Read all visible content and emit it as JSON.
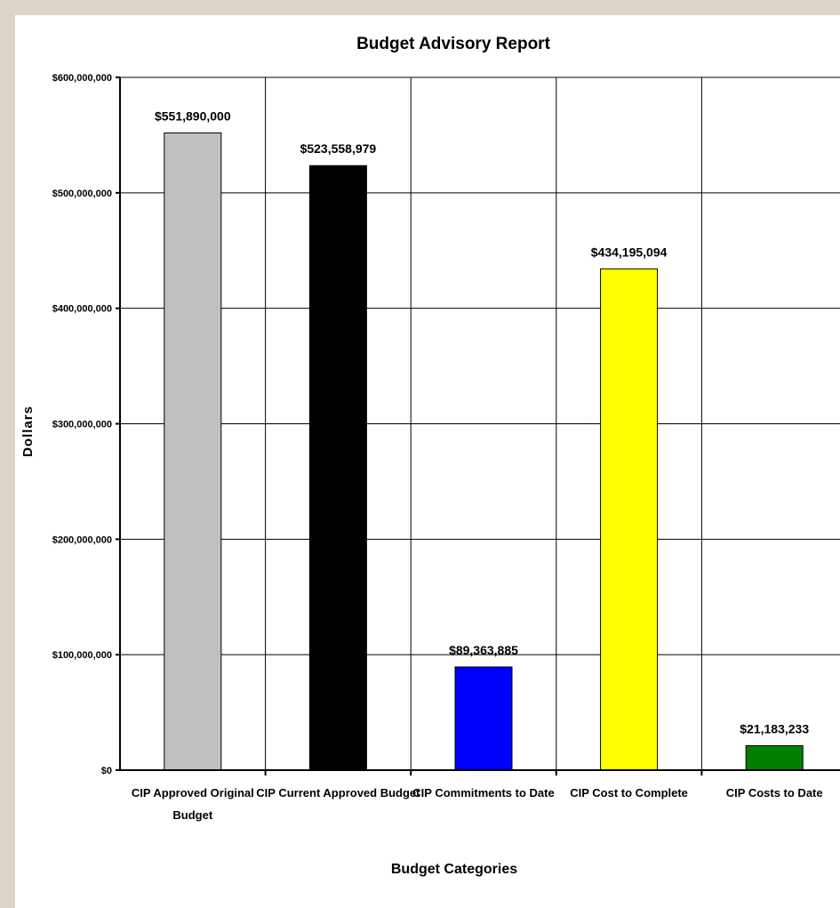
{
  "chart_data": {
    "type": "bar",
    "title": "Budget Advisory Report",
    "xlabel": "Budget Categories",
    "ylabel": "Dollars",
    "ylim": [
      0,
      600000000
    ],
    "yticks": [
      0,
      100000000,
      200000000,
      300000000,
      400000000,
      500000000,
      600000000
    ],
    "ytick_labels": [
      "$0",
      "$100,000,000",
      "$200,000,000",
      "$300,000,000",
      "$400,000,000",
      "$500,000,000",
      "$600,000,000"
    ],
    "grid": true,
    "legend": "none",
    "categories": [
      [
        "CIP Approved Original",
        "Budget"
      ],
      [
        "CIP Current Approved Budget"
      ],
      [
        "CIP Commitments to Date"
      ],
      [
        "CIP Cost to Complete"
      ],
      [
        "CIP Costs to Date"
      ]
    ],
    "values": [
      551890000,
      523558979,
      89363885,
      434195094,
      21183233
    ],
    "data_labels": [
      "$551,890,000",
      "$523,558,979",
      "$89,363,885",
      "$434,195,094",
      "$21,183,233"
    ],
    "colors": [
      "#c0c0c0",
      "#000000",
      "#0000ff",
      "#ffff00",
      "#008000"
    ]
  }
}
